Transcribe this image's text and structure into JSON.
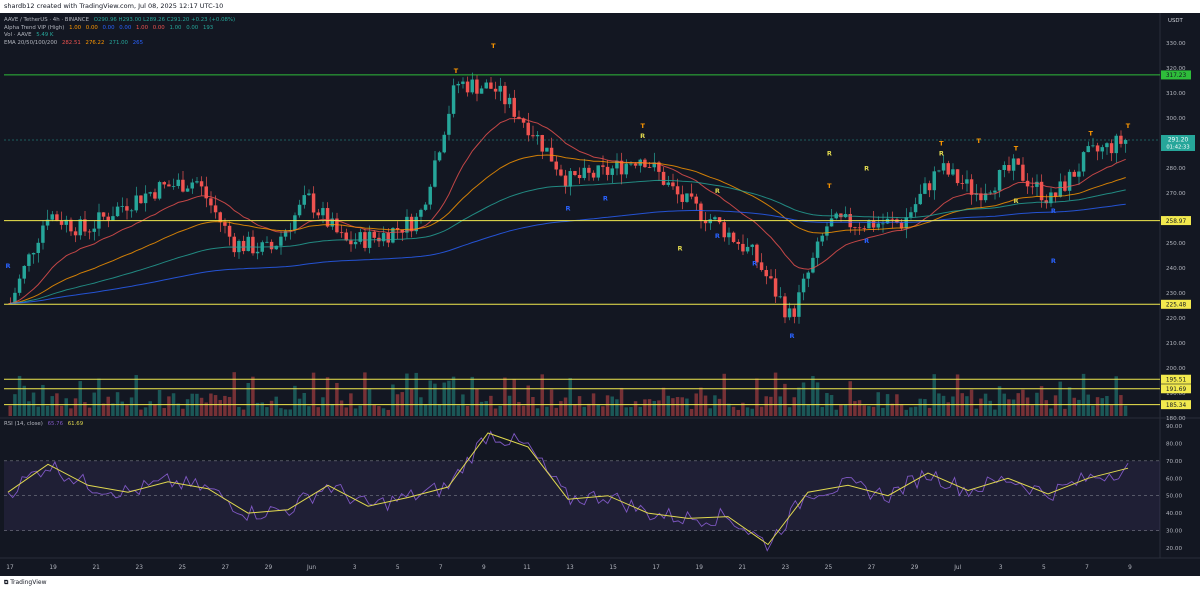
{
  "header": {
    "text": "shardb12 created with TradingView.com, Jul 08, 2025 12:17 UTC-10"
  },
  "legend": {
    "symbol": "AAVE / TetherUS · 4h · BINANCE",
    "ohlc": "O290.96 H293.00 L289.26 C291.20 +0.23 (+0.08%)",
    "alpha_label": "Alpha Trend VIP (High)",
    "alpha_values": [
      "1.00",
      "0.00",
      "0.00",
      "0.00",
      "1.00",
      "0.00",
      "1.00",
      "0.00",
      "193"
    ],
    "vol_label": "Vol · AAVE",
    "vol_value": "5.49 K",
    "ema_label": "EMA 20/50/100/200",
    "ema_values": [
      "282.51",
      "276.22",
      "271.00",
      "265"
    ],
    "rsi_label": "RSI (14, close)",
    "rsi_values": [
      "65.76",
      "61.69"
    ],
    "currency": "USDT"
  },
  "brand": {
    "name": "TradingView"
  },
  "colors": {
    "bg": "#131722",
    "up": "#26a69a",
    "down": "#ef5350",
    "hline_green": "#2ebd3a",
    "hline_yellow": "#f2e94e",
    "orange": "#ff9800",
    "rsi_line": "#7e57c2",
    "rsi_ma": "#e0d84f"
  },
  "chart_data": {
    "type": "candlestick",
    "symbol": "AAVE / TetherUS",
    "interval": "4h",
    "exchange": "BINANCE",
    "price_axis": {
      "min": 180,
      "max": 330,
      "ticks": [
        330,
        320,
        310,
        300,
        290,
        280,
        270,
        260,
        250,
        240,
        230,
        220,
        210,
        200,
        190,
        180
      ]
    },
    "x_ticks": [
      "17",
      "19",
      "21",
      "23",
      "25",
      "27",
      "29",
      "Jun",
      "3",
      "5",
      "7",
      "9",
      "11",
      "13",
      "15",
      "17",
      "19",
      "21",
      "23",
      "25",
      "27",
      "29",
      "Jul",
      "3",
      "5",
      "7",
      "9"
    ],
    "horizontal_levels": [
      {
        "value": 317.23,
        "label": "317.23",
        "color": "green"
      },
      {
        "value": 258.97,
        "label": "258.97",
        "color": "yellow"
      },
      {
        "value": 225.48,
        "label": "225.48",
        "color": "yellow"
      },
      {
        "value": 195.51,
        "label": "195.51",
        "color": "yellow"
      },
      {
        "value": 191.69,
        "label": "191.69",
        "color": "yellow"
      },
      {
        "value": 185.34,
        "label": "185.34",
        "color": "yellow"
      }
    ],
    "last_price": {
      "value": 291.2,
      "label": "291.20",
      "countdown": "01:42:33"
    },
    "price_path": [
      {
        "x": "17",
        "close": 226
      },
      {
        "x": "19",
        "close": 262
      },
      {
        "x": "21",
        "close": 255
      },
      {
        "x": "23",
        "close": 265
      },
      {
        "x": "25",
        "close": 272
      },
      {
        "x": "27",
        "close": 275
      },
      {
        "x": "29",
        "close": 250
      },
      {
        "x": "Jun",
        "close": 247
      },
      {
        "x": "3",
        "close": 268
      },
      {
        "x": "5",
        "close": 250
      },
      {
        "x": "7",
        "close": 253
      },
      {
        "x": "9",
        "close": 260
      },
      {
        "x": "10",
        "close": 314
      },
      {
        "x": "11",
        "close": 312
      },
      {
        "x": "12",
        "close": 296
      },
      {
        "x": "13",
        "close": 275
      },
      {
        "x": "15",
        "close": 278
      },
      {
        "x": "16",
        "close": 285
      },
      {
        "x": "17",
        "close": 268
      },
      {
        "x": "19",
        "close": 258
      },
      {
        "x": "21",
        "close": 245
      },
      {
        "x": "22",
        "close": 220
      },
      {
        "x": "23",
        "close": 258
      },
      {
        "x": "25",
        "close": 258
      },
      {
        "x": "27",
        "close": 258
      },
      {
        "x": "29",
        "close": 280
      },
      {
        "x": "Jul",
        "close": 270
      },
      {
        "x": "3",
        "close": 280
      },
      {
        "x": "5",
        "close": 267
      },
      {
        "x": "7",
        "close": 285
      },
      {
        "x": "8",
        "close": 291.2
      }
    ],
    "markers": {
      "T": [
        {
          "x": "10",
          "price": 318
        },
        {
          "x": "11",
          "price": 328
        },
        {
          "x": "16",
          "price": 296
        },
        {
          "x": "23",
          "price": 272
        },
        {
          "x": "29",
          "price": 289
        },
        {
          "x": "Jul",
          "price": 290
        },
        {
          "x": "3",
          "price": 287
        },
        {
          "x": "7",
          "price": 293
        },
        {
          "x": "8",
          "price": 296
        }
      ],
      "R": [
        {
          "x": "17",
          "price": 247
        },
        {
          "x": "19",
          "price": 270
        },
        {
          "x": "23",
          "price": 285
        },
        {
          "x": "25",
          "price": 279
        },
        {
          "x": "3",
          "price": 266
        },
        {
          "x": "16",
          "price": 292
        },
        {
          "x": "29",
          "price": 285
        }
      ],
      "S": [
        {
          "x": "21",
          "price": 241
        },
        {
          "x": "31",
          "price": 240
        },
        {
          "x": "5",
          "price": 242
        },
        {
          "x": "13",
          "price": 263
        },
        {
          "x": "15",
          "price": 267
        },
        {
          "x": "19",
          "price": 252
        },
        {
          "x": "22",
          "price": 212
        },
        {
          "x": "25",
          "price": 250
        },
        {
          "x": "5",
          "price": 262
        }
      ]
    },
    "rsi": {
      "period": 14,
      "axis_ticks": [
        90,
        80,
        70,
        60,
        50,
        40,
        30,
        20
      ],
      "upper_band": 70,
      "lower_band": 30,
      "values": [
        {
          "x": "17",
          "value": 52
        },
        {
          "x": "19",
          "value": 68
        },
        {
          "x": "21",
          "value": 56
        },
        {
          "x": "23",
          "value": 52
        },
        {
          "x": "25",
          "value": 58
        },
        {
          "x": "27",
          "value": 54
        },
        {
          "x": "29",
          "value": 40
        },
        {
          "x": "Jun",
          "value": 42
        },
        {
          "x": "3",
          "value": 56
        },
        {
          "x": "5",
          "value": 44
        },
        {
          "x": "7",
          "value": 49
        },
        {
          "x": "9",
          "value": 55
        },
        {
          "x": "10",
          "value": 86
        },
        {
          "x": "11",
          "value": 78
        },
        {
          "x": "13",
          "value": 48
        },
        {
          "x": "15",
          "value": 50
        },
        {
          "x": "17",
          "value": 40
        },
        {
          "x": "19",
          "value": 37
        },
        {
          "x": "21",
          "value": 38
        },
        {
          "x": "22",
          "value": 22
        },
        {
          "x": "23",
          "value": 52
        },
        {
          "x": "25",
          "value": 56
        },
        {
          "x": "27",
          "value": 50
        },
        {
          "x": "29",
          "value": 63
        },
        {
          "x": "Jul",
          "value": 53
        },
        {
          "x": "3",
          "value": 60
        },
        {
          "x": "5",
          "value": 51
        },
        {
          "x": "7",
          "value": 60
        },
        {
          "x": "8",
          "value": 65.76
        }
      ]
    }
  }
}
